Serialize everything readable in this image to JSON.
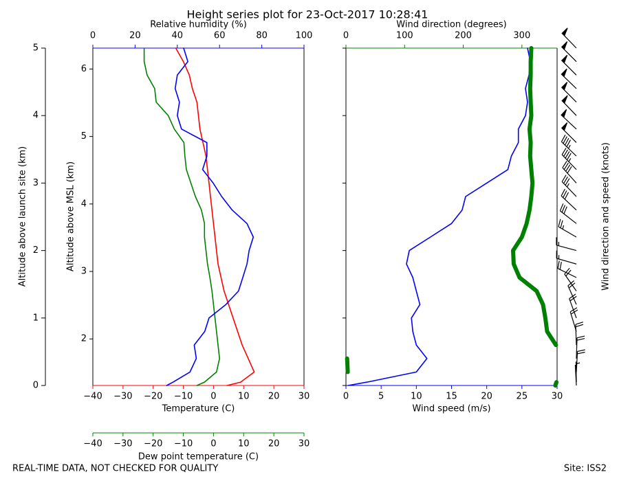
{
  "title": "Height series plot for 23-Oct-2017 10:28:41",
  "footer_left": "REAL-TIME DATA, NOT CHECKED FOR QUALITY",
  "footer_right": "Site: ISS2",
  "chart_data": [
    {
      "type": "line",
      "ylabel": "Altitude above launch site (km)",
      "ylim": [
        0,
        5
      ],
      "yticks": [
        0,
        1,
        2,
        3,
        4,
        5
      ],
      "y2label": "Altitude above MSL (km)",
      "y2lim": [
        1.31,
        6.31
      ],
      "y2ticks": [
        2,
        3,
        4,
        5,
        6
      ],
      "altitude": [
        0,
        0.05,
        0.2,
        0.4,
        0.6,
        0.8,
        1.0,
        1.2,
        1.4,
        1.6,
        1.8,
        2.0,
        2.2,
        2.4,
        2.6,
        2.8,
        3.0,
        3.2,
        3.4,
        3.6,
        3.8,
        4.0,
        4.2,
        4.4,
        4.6,
        4.8,
        5.0
      ],
      "series": [
        {
          "name": "Temperature (C)",
          "axis": "bottom",
          "color": "#ff0000",
          "lim": [
            -40,
            30
          ],
          "ticks": [
            {
              "value": -40,
              "label": "−40"
            },
            {
              "value": -30,
              "label": "−30"
            },
            {
              "value": -20,
              "label": "−20"
            },
            {
              "value": -10,
              "label": "−10"
            },
            0,
            10,
            20,
            30
          ],
          "values": [
            4.5,
            9,
            13.5,
            11.5,
            9.5,
            8,
            6.5,
            5,
            3.5,
            2.5,
            1.5,
            1,
            0.5,
            0,
            -0.5,
            -1,
            -1.5,
            -2,
            -2.5,
            -3.5,
            -4.5,
            -5,
            -5.5,
            -7,
            -8,
            -10,
            -12.5
          ]
        },
        {
          "name": "Dew point temperature (C)",
          "axis": "bottom2",
          "color": "#008000",
          "lim": [
            -40,
            30
          ],
          "ticks": [
            {
              "value": -40,
              "label": "−40"
            },
            {
              "value": -30,
              "label": "−30"
            },
            {
              "value": -20,
              "label": "−20"
            },
            {
              "value": -10,
              "label": "−10"
            },
            0,
            10,
            20,
            30
          ],
          "values": [
            -5.5,
            -3,
            1,
            2,
            1.5,
            1,
            0.5,
            0,
            -0.5,
            -1.2,
            -2,
            -2.5,
            -3,
            -3,
            -4,
            -6,
            -7.5,
            -9,
            -9.5,
            -9.8,
            -13,
            -15,
            -19,
            -19.5,
            -22,
            -23,
            -23
          ]
        },
        {
          "name": "Relative humidity (%)",
          "axis": "top",
          "color": "#0000ff",
          "lim": [
            0,
            100
          ],
          "ticks": [
            0,
            20,
            40,
            60,
            80,
            100
          ],
          "values": [
            35,
            38,
            46,
            49,
            48,
            53,
            55,
            63,
            69,
            71,
            73,
            74,
            76,
            73,
            66,
            61,
            57,
            52,
            54,
            54,
            42,
            40,
            41,
            39,
            40,
            45,
            43
          ]
        }
      ]
    },
    {
      "type": "line",
      "ylim": [
        0,
        5
      ],
      "yticks": [
        0,
        1,
        2,
        3,
        4,
        5
      ],
      "barb_label": "Wind direction and speed (knots)",
      "altitude": [
        0,
        0.05,
        0.2,
        0.4,
        0.6,
        0.8,
        1.0,
        1.2,
        1.4,
        1.6,
        1.8,
        2.0,
        2.2,
        2.4,
        2.6,
        2.8,
        3.0,
        3.2,
        3.4,
        3.6,
        3.8,
        4.0,
        4.2,
        4.4,
        4.6,
        4.8,
        5.0
      ],
      "series": [
        {
          "name": "Wind speed (m/s)",
          "axis": "bottom",
          "color": "#0000ff",
          "lim": [
            0,
            30
          ],
          "ticks": [
            0,
            5,
            10,
            15,
            20,
            25,
            30
          ],
          "values": [
            0.3,
            3,
            10,
            11.5,
            10,
            9.5,
            9.3,
            10.5,
            10,
            9.5,
            8.6,
            9,
            12,
            15,
            16.5,
            17,
            20,
            23,
            23.5,
            24.5,
            24.5,
            25.5,
            25.8,
            25.5,
            26,
            26.2,
            25.8
          ]
        },
        {
          "name": "Wind direction (degrees)",
          "axis": "top",
          "color": "#008000",
          "lim": [
            0,
            360
          ],
          "ticks": [
            0,
            100,
            200,
            300
          ],
          "values": [
            357,
            359,
            3,
            2,
            358,
            343,
            340,
            336,
            325,
            296,
            286,
            285,
            300,
            308,
            313,
            316,
            318,
            316,
            314,
            315,
            313,
            316,
            315,
            314,
            315,
            315,
            316
          ]
        }
      ]
    }
  ]
}
